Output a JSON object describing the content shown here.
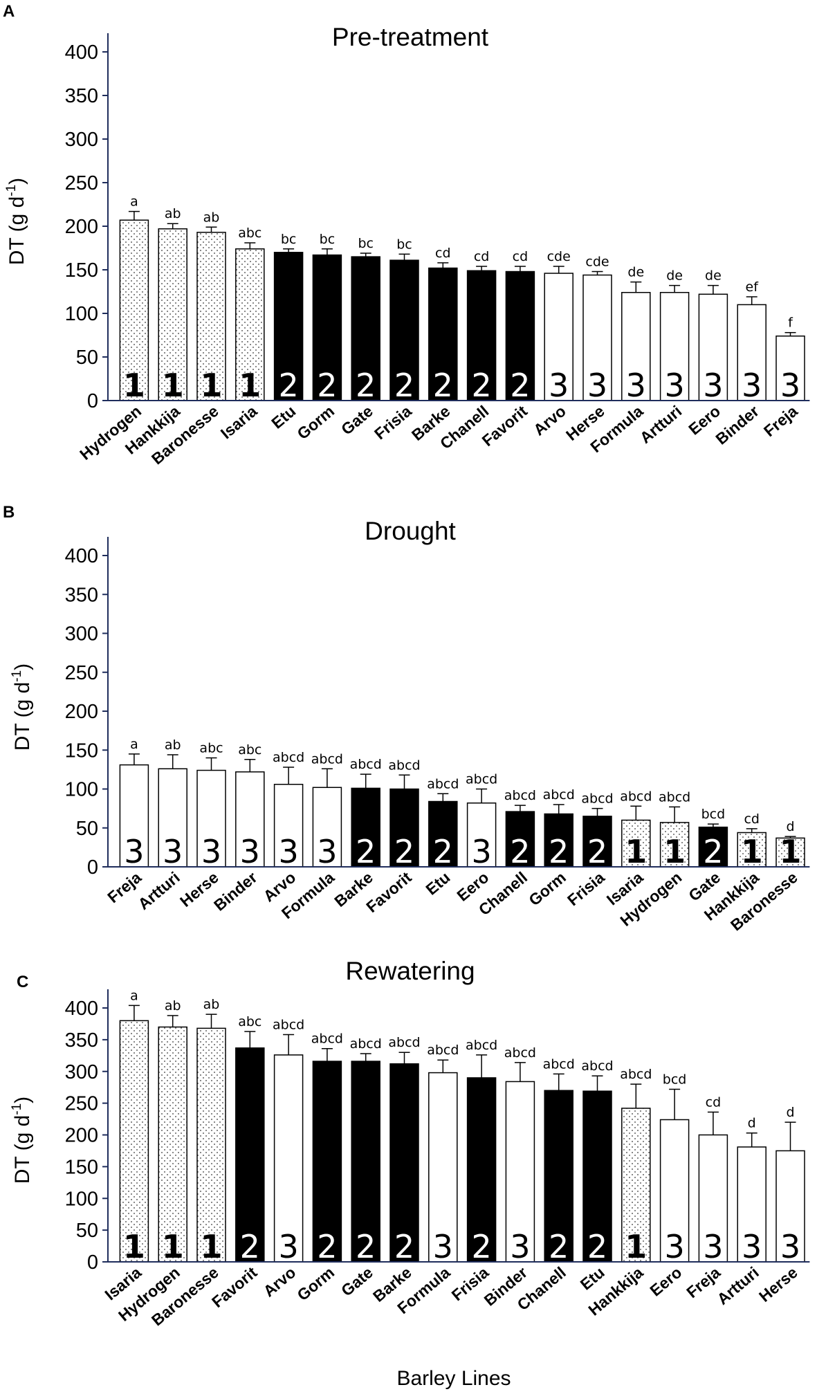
{
  "xlabel": "Barley Lines",
  "colors": {
    "axis": "#1f2d5c",
    "group1_fill": "#ffffff",
    "group2_fill": "#000000",
    "group3_fill": "#ffffff",
    "bar_stroke": "#000000"
  },
  "chart_data": [
    {
      "type": "bar",
      "panel": "A",
      "title": "Pre-treatment",
      "ylabel": "DT (g d-1)",
      "ylabel_main": "DT (g d",
      "ylabel_sup": "-1",
      "ylabel_close": ")",
      "ylim": [
        0,
        400
      ],
      "yticks": [
        0,
        50,
        100,
        150,
        200,
        250,
        300,
        350,
        400
      ],
      "categories": [
        "Hydrogen",
        "Hankkija",
        "Baronesse",
        "Isaria",
        "Etu",
        "Gorm",
        "Gate",
        "Frisia",
        "Barke",
        "Chanell",
        "Favorit",
        "Arvo",
        "Herse",
        "Formula",
        "Artturi",
        "Eero",
        "Binder",
        "Freja"
      ],
      "values": [
        207,
        197,
        193,
        174,
        170,
        167,
        165,
        161,
        152,
        149,
        148,
        146,
        144,
        124,
        124,
        122,
        110,
        74
      ],
      "errors": [
        10,
        6,
        6,
        7,
        4,
        7,
        4,
        7,
        6,
        5,
        6,
        8,
        4,
        12,
        8,
        10,
        9,
        4
      ],
      "letters": [
        "a",
        "ab",
        "ab",
        "abc",
        "bc",
        "bc",
        "bc",
        "bc",
        "cd",
        "cd",
        "cd",
        "cde",
        "cde",
        "de",
        "de",
        "de",
        "ef",
        "f"
      ],
      "groups": [
        "1",
        "1",
        "1",
        "1",
        "2",
        "2",
        "2",
        "2",
        "2",
        "2",
        "2",
        "3",
        "3",
        "3",
        "3",
        "3",
        "3",
        "3"
      ]
    },
    {
      "type": "bar",
      "panel": "B",
      "title": "Drought",
      "ylabel": "DT (g d-1)",
      "ylabel_main": "DT (g d",
      "ylabel_sup": "-1",
      "ylabel_close": ")",
      "ylim": [
        0,
        400
      ],
      "yticks": [
        0,
        50,
        100,
        150,
        200,
        250,
        300,
        350,
        400
      ],
      "categories": [
        "Freja",
        "Artturi",
        "Herse",
        "Binder",
        "Arvo",
        "Formula",
        "Barke",
        "Favorit",
        "Etu",
        "Eero",
        "Chanell",
        "Gorm",
        "Frisia",
        "Isaria",
        "Hydrogen",
        "Gate",
        "Hankkija",
        "Baronesse"
      ],
      "values": [
        131,
        126,
        124,
        122,
        106,
        102,
        101,
        100,
        84,
        82,
        71,
        68,
        65,
        60,
        57,
        51,
        44,
        37
      ],
      "errors": [
        14,
        18,
        16,
        16,
        22,
        24,
        18,
        18,
        10,
        18,
        8,
        12,
        10,
        18,
        20,
        4,
        5,
        2
      ],
      "letters": [
        "a",
        "ab",
        "abc",
        "abc",
        "abcd",
        "abcd",
        "abcd",
        "abcd",
        "abcd",
        "abcd",
        "abcd",
        "abcd",
        "abcd",
        "abcd",
        "abcd",
        "bcd",
        "cd",
        "d"
      ],
      "groups": [
        "3",
        "3",
        "3",
        "3",
        "3",
        "3",
        "2",
        "2",
        "2",
        "3",
        "2",
        "2",
        "2",
        "1",
        "1",
        "2",
        "1",
        "1"
      ]
    },
    {
      "type": "bar",
      "panel": "C",
      "title": "Rewatering",
      "ylabel": "DT (g d-1)",
      "ylabel_main": "DT (g d",
      "ylabel_sup": "-1",
      "ylabel_close": ")",
      "ylim": [
        0,
        400
      ],
      "yticks": [
        0,
        50,
        100,
        150,
        200,
        250,
        300,
        350,
        400
      ],
      "categories": [
        "Isaria",
        "Hydrogen",
        "Baronesse",
        "Favorit",
        "Arvo",
        "Gorm",
        "Gate",
        "Barke",
        "Formula",
        "Frisia",
        "Binder",
        "Chanell",
        "Etu",
        "Hankkija",
        "Eero",
        "Freja",
        "Artturi",
        "Herse"
      ],
      "values": [
        380,
        370,
        368,
        337,
        326,
        316,
        316,
        312,
        298,
        290,
        284,
        270,
        269,
        242,
        224,
        200,
        181,
        175
      ],
      "errors": [
        24,
        18,
        22,
        26,
        32,
        20,
        12,
        18,
        20,
        36,
        30,
        26,
        24,
        38,
        48,
        36,
        22,
        45
      ],
      "letters": [
        "a",
        "ab",
        "ab",
        "abc",
        "abcd",
        "abcd",
        "abcd",
        "abcd",
        "abcd",
        "abcd",
        "abcd",
        "abcd",
        "abcd",
        "abcd",
        "bcd",
        "cd",
        "d",
        "d"
      ],
      "groups": [
        "1",
        "1",
        "1",
        "2",
        "3",
        "2",
        "2",
        "2",
        "3",
        "2",
        "3",
        "2",
        "2",
        "1",
        "3",
        "3",
        "3",
        "3"
      ]
    }
  ]
}
